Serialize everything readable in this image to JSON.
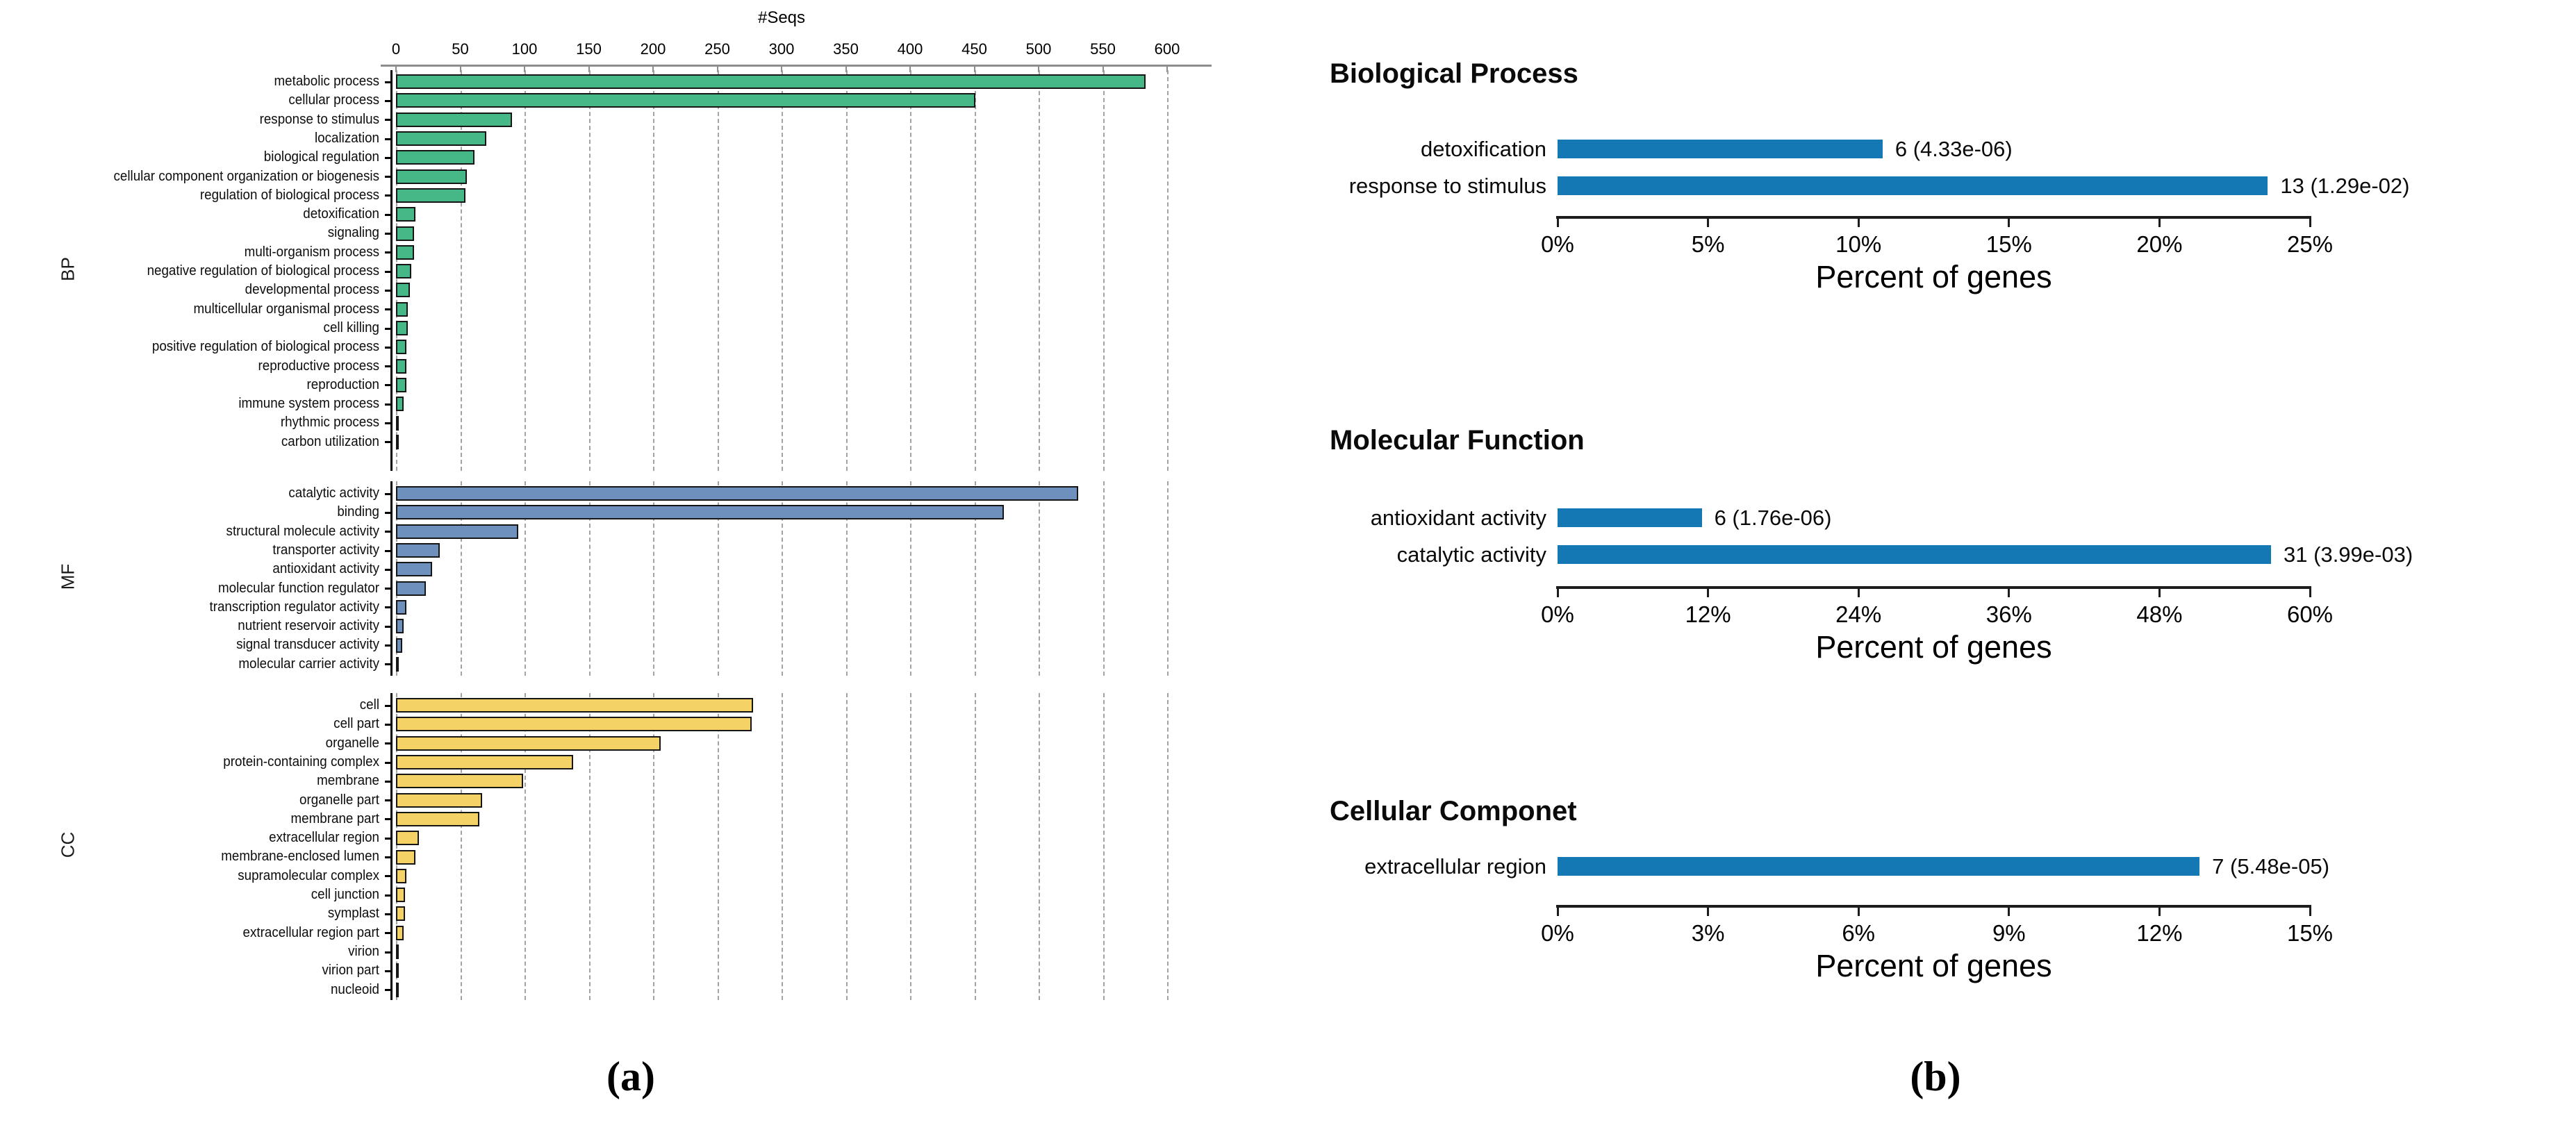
{
  "captions": {
    "a": "(a)",
    "b": "(b)"
  },
  "panel_a": {
    "axis_title": "#Seqs",
    "xticks": [
      0,
      50,
      100,
      150,
      200,
      250,
      300,
      350,
      400,
      450,
      500,
      550,
      600
    ],
    "xlim": [
      0,
      600
    ]
  },
  "colors": {
    "bp_green": "#46b888",
    "mf_blue": "#6d90bd",
    "cc_yellow": "#f5d266",
    "enrichment_blue": "#1478b4",
    "bar_border": "#161616",
    "grid_gray": "#a3a3a3",
    "axis_gray": "#8c8c8c"
  },
  "chart_data": [
    {
      "id": "a-bp",
      "type": "bar",
      "orientation": "horizontal",
      "panel": "a",
      "section": "BP",
      "color": "#46b888",
      "xlim": [
        0,
        600
      ],
      "categories": [
        "metabolic process",
        "cellular process",
        "response to stimulus",
        "localization",
        "biological regulation",
        "cellular component organization or biogenesis",
        "regulation of biological process",
        "detoxification",
        "signaling",
        "multi-organism process",
        "negative regulation of biological process",
        "developmental process",
        "multicellular organismal process",
        "cell killing",
        "positive regulation of biological process",
        "reproductive process",
        "reproduction",
        "immune system process",
        "rhythmic process",
        "carbon utilization"
      ],
      "values": [
        583,
        451,
        90,
        70,
        61,
        55,
        54,
        15,
        14,
        14,
        12,
        11,
        9,
        9,
        8,
        8,
        8,
        6,
        2,
        2
      ]
    },
    {
      "id": "a-mf",
      "type": "bar",
      "orientation": "horizontal",
      "panel": "a",
      "section": "MF",
      "color": "#6d90bd",
      "xlim": [
        0,
        600
      ],
      "categories": [
        "catalytic activity",
        "binding",
        "structural molecule activity",
        "transporter activity",
        "antioxidant activity",
        "molecular function regulator",
        "transcription regulator activity",
        "nutrient reservoir activity",
        "signal transducer activity",
        "molecular carrier activity"
      ],
      "values": [
        531,
        473,
        95,
        34,
        28,
        23,
        8,
        6,
        5,
        2
      ]
    },
    {
      "id": "a-cc",
      "type": "bar",
      "orientation": "horizontal",
      "panel": "a",
      "section": "CC",
      "color": "#f5d266",
      "xlim": [
        0,
        600
      ],
      "categories": [
        "cell",
        "cell part",
        "organelle",
        "protein-containing complex",
        "membrane",
        "organelle part",
        "membrane part",
        "extracellular region",
        "membrane-enclosed lumen",
        "supramolecular complex",
        "cell junction",
        "symplast",
        "extracellular region part",
        "virion",
        "virion part",
        "nucleoid"
      ],
      "values": [
        278,
        277,
        206,
        138,
        99,
        67,
        65,
        18,
        15,
        8,
        7,
        7,
        6,
        2,
        2,
        2
      ]
    },
    {
      "id": "b-bp",
      "type": "bar",
      "orientation": "horizontal",
      "panel": "b",
      "title": "Biological Process",
      "xlabel": "Percent of genes",
      "color": "#1478b4",
      "xlim": [
        0,
        25
      ],
      "xticks": [
        "0%",
        "5%",
        "10%",
        "15%",
        "20%",
        "25%"
      ],
      "categories": [
        "detoxification",
        "response to stimulus"
      ],
      "values": [
        10.8,
        23.6
      ],
      "annotations": [
        "6 (4.33e-06)",
        "13 (1.29e-02)"
      ]
    },
    {
      "id": "b-mf",
      "type": "bar",
      "orientation": "horizontal",
      "panel": "b",
      "title": "Molecular Function",
      "xlabel": "Percent of genes",
      "color": "#1478b4",
      "xlim": [
        0,
        60
      ],
      "xticks": [
        "0%",
        "12%",
        "24%",
        "36%",
        "48%",
        "60%"
      ],
      "categories": [
        "antioxidant activity",
        "catalytic activity"
      ],
      "values": [
        11.5,
        56.9
      ],
      "annotations": [
        "6 (1.76e-06)",
        "31 (3.99e-03)"
      ]
    },
    {
      "id": "b-cc",
      "type": "bar",
      "orientation": "horizontal",
      "panel": "b",
      "title": "Cellular Componet",
      "xlabel": "Percent of genes",
      "color": "#1478b4",
      "xlim": [
        0,
        15
      ],
      "xticks": [
        "0%",
        "3%",
        "6%",
        "9%",
        "12%",
        "15%"
      ],
      "categories": [
        "extracellular region"
      ],
      "values": [
        12.8
      ],
      "annotations": [
        "7 (5.48e-05)"
      ]
    }
  ]
}
